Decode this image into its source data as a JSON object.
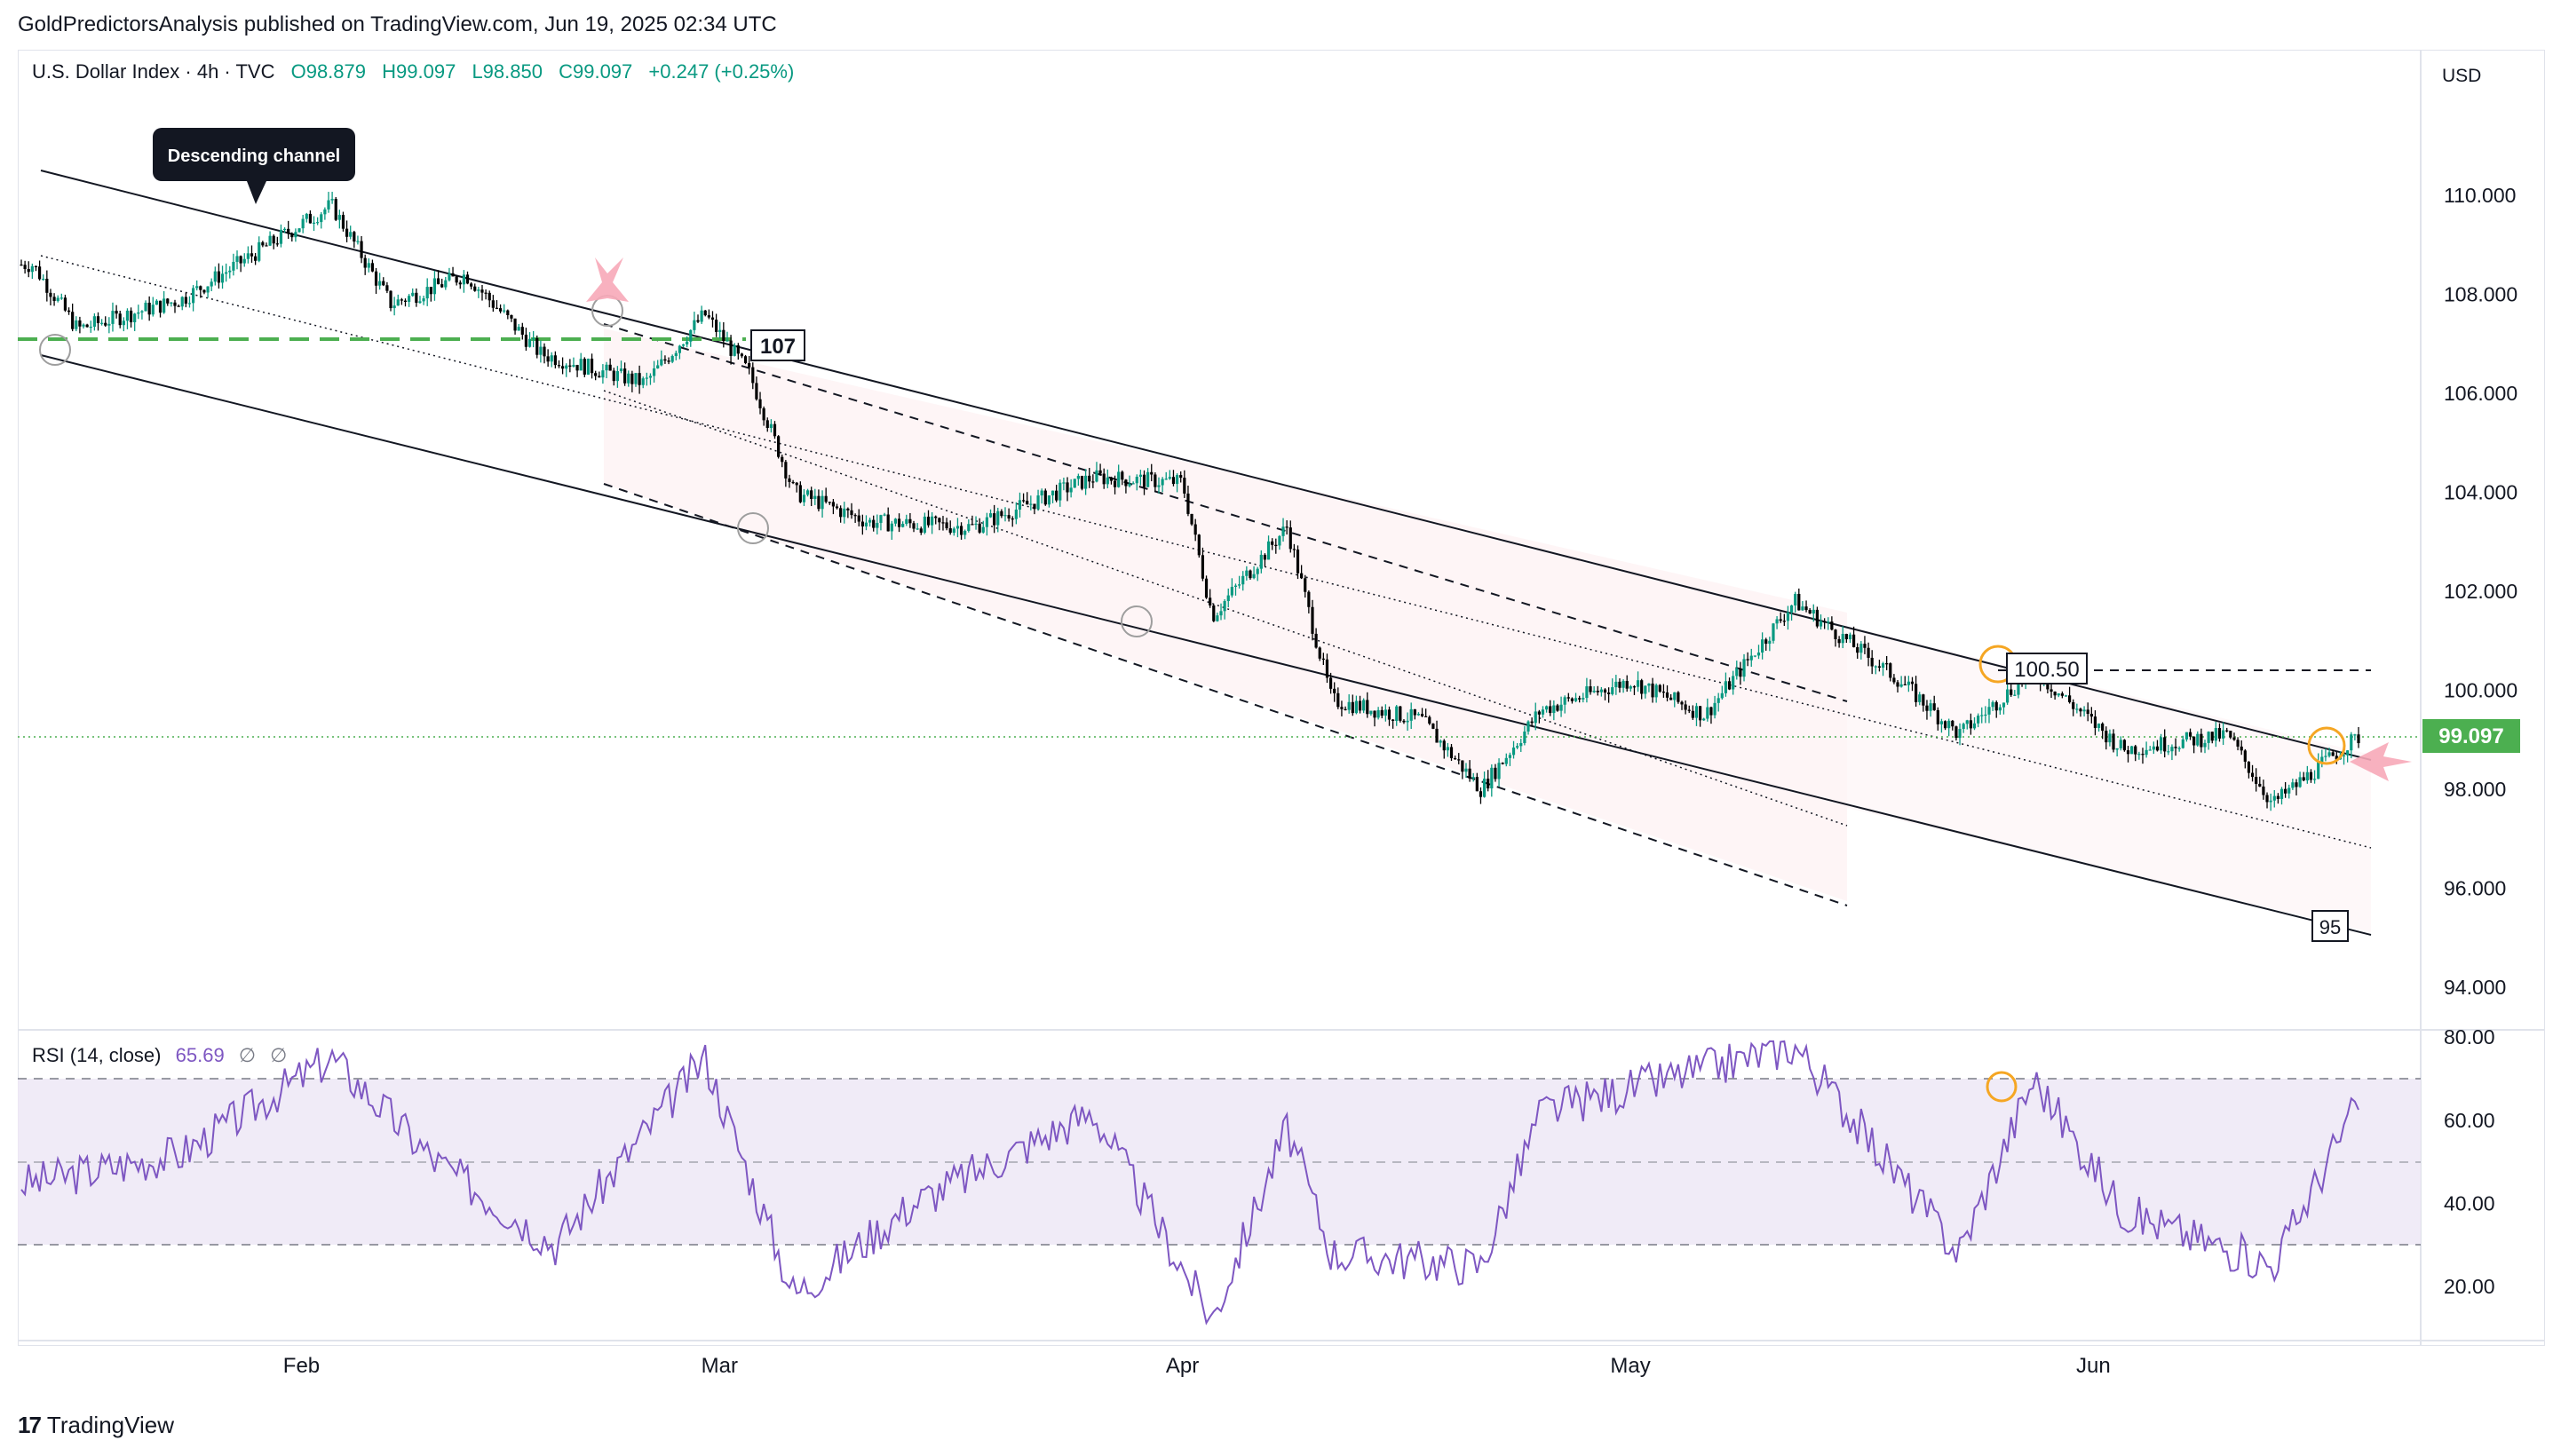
{
  "header": {
    "publisher": "GoldPredictorsAnalysis published on TradingView.com, Jun 19, 2025 02:34 UTC"
  },
  "legend": {
    "symbol": "U.S. Dollar Index · 4h · TVC",
    "open": "O98.879",
    "high": "H99.097",
    "low": "L98.850",
    "close": "C99.097",
    "change": "+0.247 (+0.25%)"
  },
  "rsi_legend": {
    "label": "RSI (14, close)",
    "value": "65.69",
    "na1": "∅",
    "na2": "∅"
  },
  "price_axis": {
    "currency": "USD",
    "ticks": [
      "110.000",
      "108.000",
      "106.000",
      "104.000",
      "102.000",
      "100.000",
      "98.000",
      "96.000",
      "94.000"
    ],
    "last_price": "99.097"
  },
  "rsi_axis": {
    "ticks": [
      "80.00",
      "60.00",
      "40.00",
      "20.00"
    ]
  },
  "time_axis": {
    "labels": [
      "Feb",
      "Mar",
      "Apr",
      "May",
      "Jun"
    ]
  },
  "annotations": {
    "callout": "Descending channel",
    "level_107": "107",
    "level_10050": "100.50",
    "level_95": "95"
  },
  "footer": {
    "brand": "TradingView"
  },
  "colors": {
    "up": "#089981",
    "down": "#000000",
    "rsi_line": "#7e57c2",
    "rsi_band": "#ede7f6",
    "support_dashed": "#4caf50",
    "last_price_bg": "#4caf50",
    "arrow": "#f7a8b8",
    "circle_orange": "#f5a623"
  },
  "chart_data": [
    {
      "type": "candlestick",
      "title": "U.S. Dollar Index · 4h · TVC",
      "ylim": [
        93.0,
        112.0
      ],
      "x_labels": [
        "Feb",
        "Mar",
        "Apr",
        "May",
        "Jun"
      ],
      "series": [
        {
          "name": "U.S. Dollar Index",
          "points_approx": [
            {
              "date": "Jan 14",
              "close": 108.6
            },
            {
              "date": "Jan 17",
              "close": 107.3
            },
            {
              "date": "Jan 24",
              "close": 107.9
            },
            {
              "date": "Feb 3",
              "close": 109.8
            },
            {
              "date": "Feb 7",
              "close": 107.8
            },
            {
              "date": "Feb 12",
              "close": 108.4
            },
            {
              "date": "Feb 17",
              "close": 106.8
            },
            {
              "date": "Feb 24",
              "close": 106.2
            },
            {
              "date": "Feb 28",
              "close": 107.6
            },
            {
              "date": "Mar 3",
              "close": 106.4
            },
            {
              "date": "Mar 6",
              "close": 104.0
            },
            {
              "date": "Mar 11",
              "close": 103.4
            },
            {
              "date": "Mar 18",
              "close": 103.3
            },
            {
              "date": "Mar 26",
              "close": 104.3
            },
            {
              "date": "Apr 1",
              "close": 104.2
            },
            {
              "date": "Apr 3",
              "close": 101.5
            },
            {
              "date": "Apr 8",
              "close": 103.3
            },
            {
              "date": "Apr 11",
              "close": 99.8
            },
            {
              "date": "Apr 17",
              "close": 99.4
            },
            {
              "date": "Apr 21",
              "close": 98.0
            },
            {
              "date": "Apr 25",
              "close": 99.6
            },
            {
              "date": "May 1",
              "close": 100.2
            },
            {
              "date": "May 6",
              "close": 99.5
            },
            {
              "date": "May 12",
              "close": 101.8
            },
            {
              "date": "May 19",
              "close": 100.2
            },
            {
              "date": "May 23",
              "close": 99.1
            },
            {
              "date": "May 28",
              "close": 100.4
            },
            {
              "date": "Jun 3",
              "close": 98.8
            },
            {
              "date": "Jun 10",
              "close": 99.1
            },
            {
              "date": "Jun 13",
              "close": 97.7
            },
            {
              "date": "Jun 18",
              "close": 98.9
            },
            {
              "date": "Jun 19",
              "close": 99.097
            }
          ]
        }
      ],
      "levels": [
        107,
        100.5,
        95
      ]
    },
    {
      "type": "line",
      "title": "RSI (14, close)",
      "ylim": [
        10,
        80
      ],
      "bands": [
        30,
        50,
        70
      ],
      "series": [
        {
          "name": "RSI (14, close)",
          "points_approx": [
            {
              "date": "Jan 14",
              "value": 45
            },
            {
              "date": "Jan 24",
              "value": 52
            },
            {
              "date": "Feb 3",
              "value": 75
            },
            {
              "date": "Feb 10",
              "value": 50
            },
            {
              "date": "Feb 18",
              "value": 30
            },
            {
              "date": "Feb 28",
              "value": 75
            },
            {
              "date": "Mar 6",
              "value": 18
            },
            {
              "date": "Mar 14",
              "value": 40
            },
            {
              "date": "Mar 26",
              "value": 62
            },
            {
              "date": "Apr 3",
              "value": 12
            },
            {
              "date": "Apr 8",
              "value": 58
            },
            {
              "date": "Apr 11",
              "value": 28
            },
            {
              "date": "Apr 21",
              "value": 25
            },
            {
              "date": "Apr 25",
              "value": 62
            },
            {
              "date": "May 12",
              "value": 78
            },
            {
              "date": "May 23",
              "value": 28
            },
            {
              "date": "May 28",
              "value": 70
            },
            {
              "date": "Jun 3",
              "value": 38
            },
            {
              "date": "Jun 13",
              "value": 25
            },
            {
              "date": "Jun 19",
              "value": 65.69
            }
          ]
        }
      ]
    }
  ]
}
